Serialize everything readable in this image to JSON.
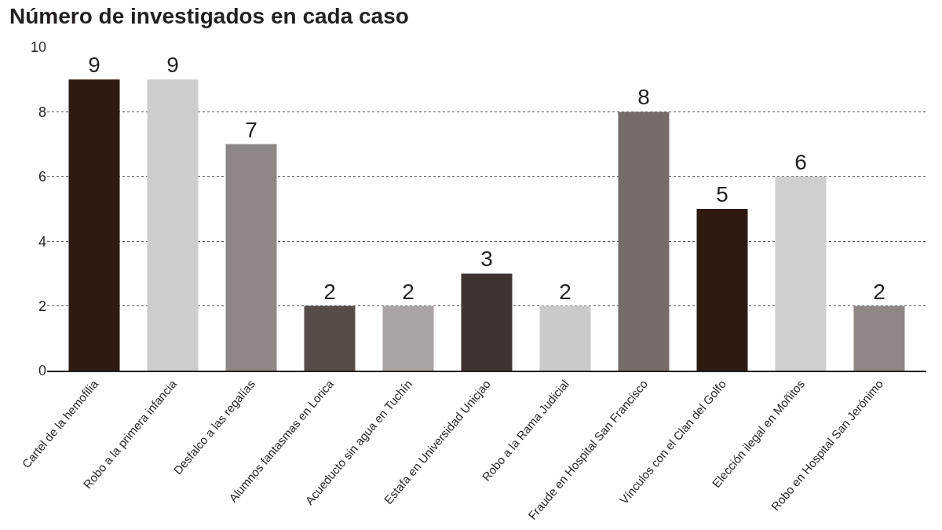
{
  "chart_data": {
    "type": "bar",
    "title": "Número de investigados en cada caso",
    "categories": [
      "Cartel de la hemofilia",
      "Robo a la primera infancia",
      "Desfalco a las regalías",
      "Alumnos fantasmas en Lorica",
      "Acueducto sin agua en Tuchín",
      "Estafa en Universidad Unicjao",
      "Robo a la Rama Judicial",
      "Fraude en Hospital San Francisco",
      "Vínculos con el Clan del Golfo",
      "Elección ilegal en Moñitos",
      "Robo en Hospital San Jerónimo"
    ],
    "values": [
      9,
      9,
      7,
      2,
      2,
      3,
      2,
      8,
      5,
      6,
      2
    ],
    "colors": [
      "#2e1a10",
      "#cfcdcb",
      "#8f8785",
      "#564d49",
      "#aaa4a2",
      "#3d3330",
      "#cccac8",
      "#756b69",
      "#2e1a10",
      "#d1cfcd",
      "#8f8785"
    ],
    "ylim": [
      0,
      10
    ],
    "yticks": [
      0,
      2,
      4,
      6,
      8,
      10
    ],
    "grid": "y",
    "data_labels": true
  }
}
